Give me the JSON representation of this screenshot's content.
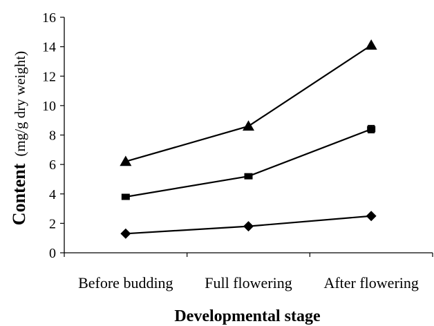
{
  "chart_data": {
    "type": "line",
    "categories": [
      "Before budding",
      "Full flowering",
      "After flowering"
    ],
    "series": [
      {
        "marker": "triangle",
        "values": [
          6.2,
          8.6,
          14.1
        ]
      },
      {
        "marker": "square",
        "values": [
          3.8,
          5.2,
          8.4
        ],
        "error": [
          0.15,
          0.15,
          0.25
        ]
      },
      {
        "marker": "diamond",
        "values": [
          1.3,
          1.8,
          2.5
        ]
      }
    ],
    "xlabel": "Developmental stage",
    "ylabel_bold": "Content",
    "ylabel_rest": "(mg/g dry weight)",
    "ylim": [
      0,
      16
    ],
    "yticks": [
      0,
      2,
      4,
      6,
      8,
      10,
      12,
      14,
      16
    ],
    "grid": false,
    "legend": "none",
    "line_color": "#000000"
  }
}
